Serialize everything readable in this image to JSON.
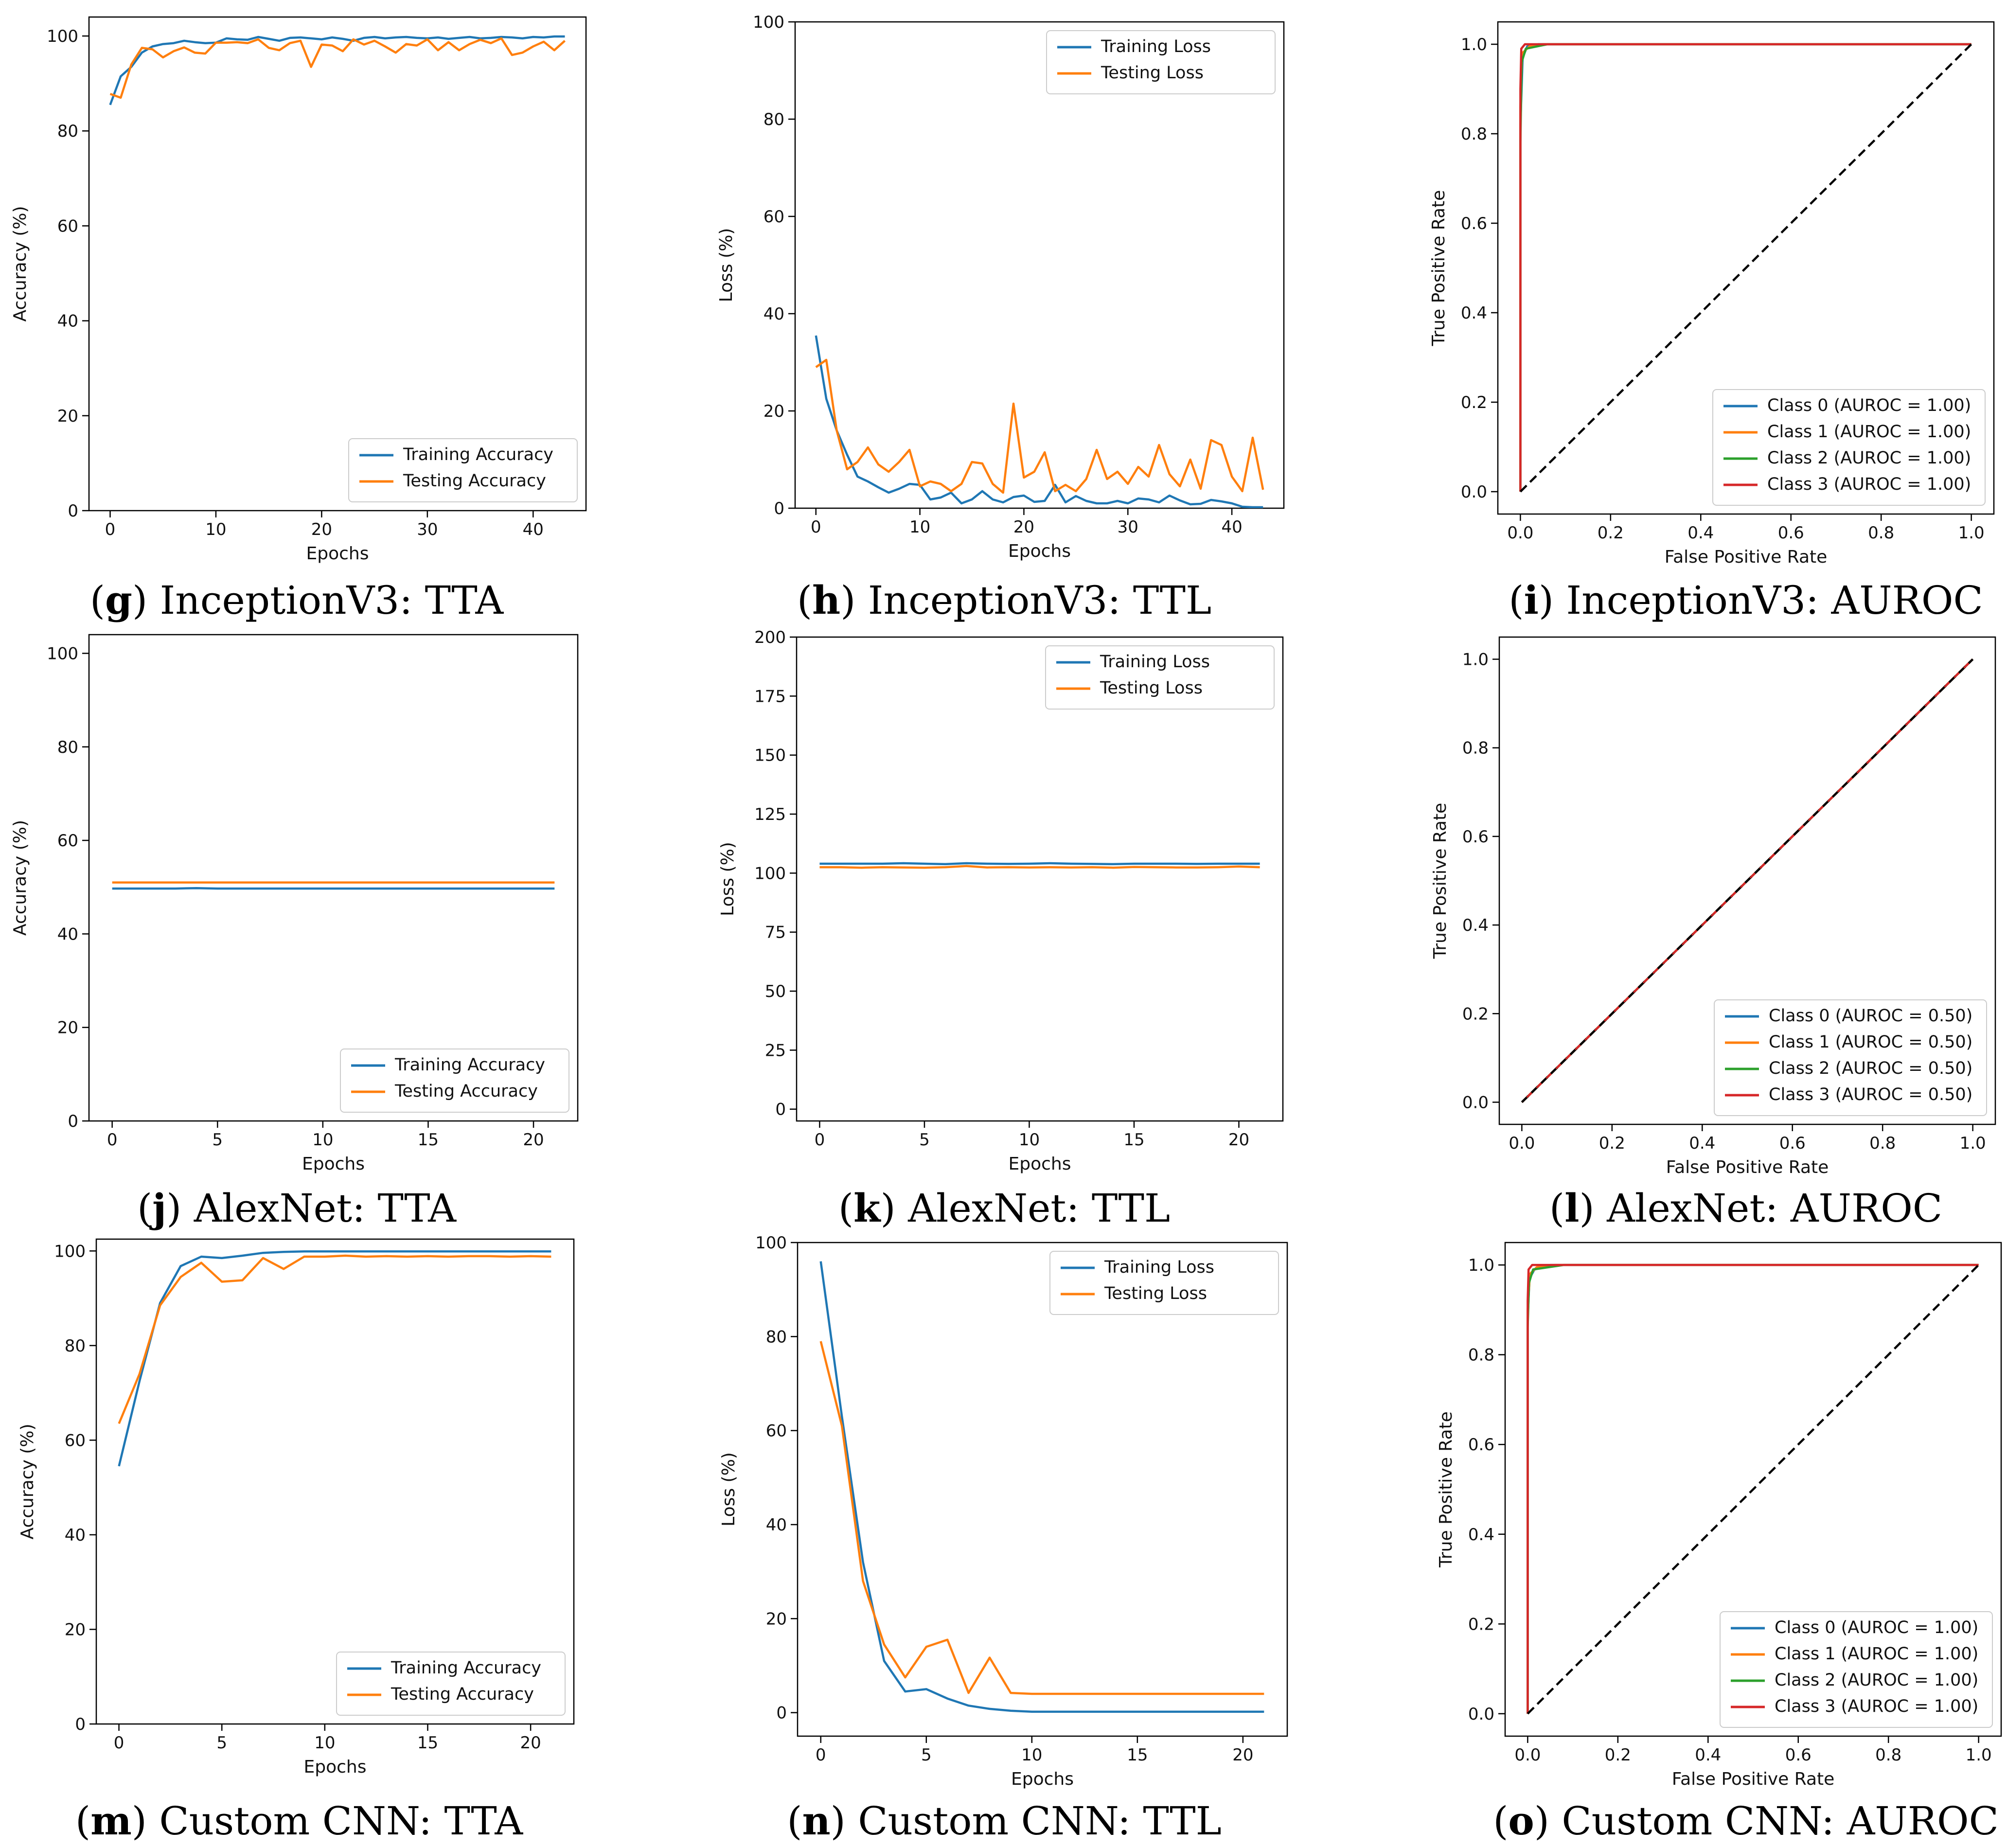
{
  "colors": {
    "blue": "#1f77b4",
    "orange": "#ff7f0e",
    "green": "#2ca02c",
    "red": "#d62728",
    "diag": "#000000",
    "axis": "#000000"
  },
  "chart_data": [
    {
      "type": "line",
      "panel": "g",
      "caption": {
        "letter": "g",
        "model": "InceptionV3",
        "metric": "TTA"
      },
      "xlabel": "Epochs",
      "ylabel": "Accuracy (%)",
      "xlim": [
        -2,
        45
      ],
      "ylim": [
        0,
        104
      ],
      "xticks": [
        0,
        10,
        20,
        30,
        40
      ],
      "yticks": [
        0,
        20,
        40,
        60,
        80,
        100
      ],
      "legend_position": "lower-right",
      "x": [
        0,
        1,
        2,
        3,
        4,
        5,
        6,
        7,
        8,
        9,
        10,
        11,
        12,
        13,
        14,
        15,
        16,
        17,
        18,
        19,
        20,
        21,
        22,
        23,
        24,
        25,
        26,
        27,
        28,
        29,
        30,
        31,
        32,
        33,
        34,
        35,
        36,
        37,
        38,
        39,
        40,
        41,
        42,
        43
      ],
      "series": [
        {
          "name": "Training Accuracy",
          "color": "blue",
          "values": [
            85.5,
            91.5,
            93.5,
            96.5,
            97.8,
            98.3,
            98.5,
            99.0,
            98.7,
            98.5,
            98.6,
            99.5,
            99.3,
            99.2,
            99.8,
            99.4,
            99.0,
            99.6,
            99.7,
            99.5,
            99.3,
            99.7,
            99.4,
            99.0,
            99.6,
            99.8,
            99.5,
            99.7,
            99.8,
            99.6,
            99.5,
            99.7,
            99.4,
            99.6,
            99.8,
            99.5,
            99.6,
            99.8,
            99.7,
            99.5,
            99.8,
            99.7,
            99.9,
            99.9
          ]
        },
        {
          "name": "Testing Accuracy",
          "color": "orange",
          "values": [
            87.8,
            87.0,
            94.0,
            97.5,
            97.2,
            95.5,
            96.8,
            97.6,
            96.5,
            96.3,
            98.6,
            98.6,
            98.7,
            98.5,
            99.3,
            97.5,
            97.0,
            98.5,
            99.0,
            93.5,
            98.2,
            98.0,
            96.8,
            99.3,
            98.2,
            99.0,
            97.8,
            96.5,
            98.3,
            98.0,
            99.3,
            97.0,
            98.7,
            97.0,
            98.3,
            99.2,
            98.5,
            99.5,
            96.0,
            96.5,
            97.8,
            98.8,
            97.0,
            99.0
          ]
        }
      ]
    },
    {
      "type": "line",
      "panel": "h",
      "caption": {
        "letter": "h",
        "model": "InceptionV3",
        "metric": "TTL"
      },
      "xlabel": "Epochs",
      "ylabel": "Loss (%)",
      "xlim": [
        -2,
        45
      ],
      "ylim": [
        0,
        100
      ],
      "xticks": [
        0,
        10,
        20,
        30,
        40
      ],
      "yticks": [
        0,
        20,
        40,
        60,
        80,
        100
      ],
      "legend_position": "top-right",
      "x": [
        0,
        1,
        2,
        3,
        4,
        5,
        6,
        7,
        8,
        9,
        10,
        11,
        12,
        13,
        14,
        15,
        16,
        17,
        18,
        19,
        20,
        21,
        22,
        23,
        24,
        25,
        26,
        27,
        28,
        29,
        30,
        31,
        32,
        33,
        34,
        35,
        36,
        37,
        38,
        39,
        40,
        41,
        42,
        43
      ],
      "series": [
        {
          "name": "Training Loss",
          "color": "blue",
          "values": [
            35.5,
            22.5,
            16.0,
            11.0,
            6.5,
            5.5,
            4.3,
            3.2,
            4.0,
            5.0,
            4.8,
            1.8,
            2.2,
            3.2,
            1.0,
            1.8,
            3.5,
            1.8,
            1.2,
            2.3,
            2.6,
            1.3,
            1.5,
            4.8,
            1.2,
            2.5,
            1.5,
            1.0,
            1.0,
            1.5,
            1.0,
            2.0,
            1.8,
            1.2,
            2.6,
            1.6,
            0.8,
            0.9,
            1.7,
            1.4,
            1.0,
            0.3,
            0.2,
            0.2
          ]
        },
        {
          "name": "Testing Loss",
          "color": "orange",
          "values": [
            29.0,
            30.5,
            16.0,
            8.0,
            9.5,
            12.5,
            9.0,
            7.5,
            9.5,
            12.0,
            4.5,
            5.5,
            5.0,
            3.5,
            5.0,
            9.5,
            9.2,
            5.0,
            3.2,
            21.5,
            6.3,
            7.5,
            11.5,
            3.5,
            4.8,
            3.5,
            6.0,
            12.0,
            6.0,
            7.5,
            5.0,
            8.5,
            6.5,
            13.0,
            7.0,
            4.5,
            10.0,
            4.0,
            14.0,
            13.0,
            6.5,
            3.5,
            14.5,
            3.8
          ]
        }
      ]
    },
    {
      "type": "line",
      "panel": "i",
      "caption": {
        "letter": "i",
        "model": "InceptionV3",
        "metric": "AUROC"
      },
      "xlabel": "False Positive Rate",
      "ylabel": "True Positive Rate",
      "xlim": [
        -0.05,
        1.05
      ],
      "ylim": [
        -0.05,
        1.05
      ],
      "xticks": [
        0.0,
        0.2,
        0.4,
        0.6,
        0.8,
        1.0
      ],
      "yticks": [
        0.0,
        0.2,
        0.4,
        0.6,
        0.8,
        1.0
      ],
      "tick_format": "1dp",
      "legend_position": "lower-right",
      "diagonal": true,
      "series": [
        {
          "name": "Class 0 (AUROC = 1.00)",
          "color": "blue",
          "x": [
            0,
            0,
            0.005,
            0.015,
            0.04,
            1
          ],
          "y": [
            0,
            0.82,
            0.97,
            0.995,
            1,
            1
          ]
        },
        {
          "name": "Class 1 (AUROC = 1.00)",
          "color": "orange",
          "x": [
            0,
            0,
            0.004,
            0.02,
            0.05,
            1
          ],
          "y": [
            0,
            0.86,
            0.98,
            0.995,
            1,
            1
          ]
        },
        {
          "name": "Class 2 (AUROC = 1.00)",
          "color": "green",
          "x": [
            0,
            0,
            0.003,
            0.012,
            0.06,
            1
          ],
          "y": [
            0,
            0.78,
            0.96,
            0.99,
            1,
            1
          ]
        },
        {
          "name": "Class 3 (AUROC = 1.00)",
          "color": "red",
          "x": [
            0,
            0,
            0.002,
            0.01,
            0.03,
            1
          ],
          "y": [
            0,
            0.9,
            0.99,
            1,
            1,
            1
          ]
        }
      ]
    },
    {
      "type": "line",
      "panel": "j",
      "caption": {
        "letter": "j",
        "model": "AlexNet",
        "metric": "TTA"
      },
      "xlabel": "Epochs",
      "ylabel": "Accuracy (%)",
      "xlim": [
        -1.1,
        22.1
      ],
      "ylim": [
        0,
        104
      ],
      "xticks": [
        0,
        5,
        10,
        15,
        20
      ],
      "yticks": [
        0,
        20,
        40,
        60,
        80,
        100
      ],
      "legend_position": "lower-right",
      "x": [
        0,
        1,
        2,
        3,
        4,
        5,
        6,
        7,
        8,
        9,
        10,
        11,
        12,
        13,
        14,
        15,
        16,
        17,
        18,
        19,
        20,
        21
      ],
      "series": [
        {
          "name": "Training Accuracy",
          "color": "blue",
          "values": [
            49.7,
            49.7,
            49.7,
            49.7,
            49.8,
            49.7,
            49.7,
            49.7,
            49.7,
            49.7,
            49.7,
            49.7,
            49.7,
            49.7,
            49.7,
            49.7,
            49.7,
            49.7,
            49.7,
            49.7,
            49.7,
            49.7
          ]
        },
        {
          "name": "Testing Accuracy",
          "color": "orange",
          "values": [
            51.0,
            51.0,
            51.0,
            51.0,
            51.0,
            51.0,
            51.0,
            51.0,
            51.0,
            51.0,
            51.0,
            51.0,
            51.0,
            51.0,
            51.0,
            51.0,
            51.0,
            51.0,
            51.0,
            51.0,
            51.0,
            51.0
          ]
        }
      ]
    },
    {
      "type": "line",
      "panel": "k",
      "caption": {
        "letter": "k",
        "model": "AlexNet",
        "metric": "TTL"
      },
      "xlabel": "Epochs",
      "ylabel": "Loss (%)",
      "xlim": [
        -1.1,
        22.1
      ],
      "ylim": [
        -5,
        200
      ],
      "xticks": [
        0,
        5,
        10,
        15,
        20
      ],
      "yticks": [
        0,
        25,
        50,
        75,
        100,
        125,
        150,
        175,
        200
      ],
      "legend_position": "top-right",
      "x": [
        0,
        1,
        2,
        3,
        4,
        5,
        6,
        7,
        8,
        9,
        10,
        11,
        12,
        13,
        14,
        15,
        16,
        17,
        18,
        19,
        20,
        21
      ],
      "series": [
        {
          "name": "Training Loss",
          "color": "blue",
          "values": [
            104.0,
            104.0,
            104.0,
            104.0,
            104.2,
            104.0,
            103.8,
            104.2,
            104.0,
            103.9,
            104.0,
            104.2,
            104.0,
            103.9,
            103.8,
            104.0,
            104.0,
            104.0,
            103.9,
            104.0,
            104.0,
            104.0
          ]
        },
        {
          "name": "Testing Loss",
          "color": "orange",
          "values": [
            102.5,
            102.5,
            102.3,
            102.5,
            102.4,
            102.3,
            102.5,
            103.0,
            102.4,
            102.5,
            102.4,
            102.5,
            102.4,
            102.5,
            102.3,
            102.6,
            102.5,
            102.4,
            102.4,
            102.5,
            102.8,
            102.5
          ]
        }
      ]
    },
    {
      "type": "line",
      "panel": "l",
      "caption": {
        "letter": "l",
        "model": "AlexNet",
        "metric": "AUROC"
      },
      "xlabel": "False Positive Rate",
      "ylabel": "True Positive Rate",
      "xlim": [
        -0.05,
        1.05
      ],
      "ylim": [
        -0.05,
        1.05
      ],
      "xticks": [
        0.0,
        0.2,
        0.4,
        0.6,
        0.8,
        1.0
      ],
      "yticks": [
        0.0,
        0.2,
        0.4,
        0.6,
        0.8,
        1.0
      ],
      "tick_format": "1dp",
      "legend_position": "lower-right",
      "diagonal": true,
      "series": [
        {
          "name": "Class 0 (AUROC = 0.50)",
          "color": "blue",
          "x": [
            0,
            1
          ],
          "y": [
            0,
            1
          ]
        },
        {
          "name": "Class 1 (AUROC = 0.50)",
          "color": "orange",
          "x": [
            0,
            1
          ],
          "y": [
            0,
            1
          ]
        },
        {
          "name": "Class 2 (AUROC = 0.50)",
          "color": "green",
          "x": [
            0,
            1
          ],
          "y": [
            0,
            1
          ]
        },
        {
          "name": "Class 3 (AUROC = 0.50)",
          "color": "red",
          "x": [
            0,
            1
          ],
          "y": [
            0,
            1
          ]
        }
      ]
    },
    {
      "type": "line",
      "panel": "m",
      "caption": {
        "letter": "m",
        "model": "Custom CNN",
        "metric": "TTA"
      },
      "xlabel": "Epochs",
      "ylabel": "Accuracy (%)",
      "xlim": [
        -1.1,
        22.1
      ],
      "ylim": [
        0,
        102.5
      ],
      "xticks": [
        0,
        5,
        10,
        15,
        20
      ],
      "yticks": [
        0,
        20,
        40,
        60,
        80,
        100
      ],
      "legend_position": "lower-right",
      "x": [
        0,
        1,
        2,
        3,
        4,
        5,
        6,
        7,
        8,
        9,
        10,
        11,
        12,
        13,
        14,
        15,
        16,
        17,
        18,
        19,
        20,
        21
      ],
      "series": [
        {
          "name": "Training Accuracy",
          "color": "blue",
          "values": [
            54.5,
            72.5,
            89.0,
            96.8,
            98.8,
            98.5,
            99.0,
            99.6,
            99.8,
            99.9,
            99.9,
            99.9,
            99.9,
            99.9,
            99.9,
            99.9,
            99.9,
            99.9,
            99.9,
            99.9,
            99.9,
            99.9
          ]
        },
        {
          "name": "Testing Accuracy",
          "color": "orange",
          "values": [
            63.5,
            74.0,
            88.5,
            94.5,
            97.5,
            93.5,
            93.8,
            98.5,
            96.2,
            98.8,
            98.8,
            99.0,
            98.8,
            98.9,
            98.8,
            98.9,
            98.8,
            98.9,
            98.9,
            98.8,
            98.9,
            98.8
          ]
        }
      ]
    },
    {
      "type": "line",
      "panel": "n",
      "caption": {
        "letter": "n",
        "model": "Custom CNN",
        "metric": "TTL"
      },
      "xlabel": "Epochs",
      "ylabel": "Loss (%)",
      "xlim": [
        -1.1,
        22.1
      ],
      "ylim": [
        -5,
        100
      ],
      "xticks": [
        0,
        5,
        10,
        15,
        20
      ],
      "yticks": [
        0,
        20,
        40,
        60,
        80,
        100
      ],
      "legend_position": "top-right",
      "x": [
        0,
        1,
        2,
        3,
        4,
        5,
        6,
        7,
        8,
        9,
        10,
        11,
        12,
        13,
        14,
        15,
        16,
        17,
        18,
        19,
        20,
        21
      ],
      "series": [
        {
          "name": "Training Loss",
          "color": "blue",
          "values": [
            96.0,
            63.0,
            32.0,
            11.0,
            4.5,
            5.0,
            3.0,
            1.5,
            0.8,
            0.4,
            0.2,
            0.2,
            0.2,
            0.2,
            0.2,
            0.2,
            0.2,
            0.2,
            0.2,
            0.2,
            0.2,
            0.2
          ]
        },
        {
          "name": "Testing Loss",
          "color": "orange",
          "values": [
            79.0,
            61.0,
            28.0,
            14.5,
            7.5,
            14.0,
            15.5,
            4.2,
            11.7,
            4.2,
            4.0,
            4.0,
            4.0,
            4.0,
            4.0,
            4.0,
            4.0,
            4.0,
            4.0,
            4.0,
            4.0,
            4.0
          ]
        }
      ]
    },
    {
      "type": "line",
      "panel": "o",
      "caption": {
        "letter": "o",
        "model": "Custom CNN",
        "metric": "AUROC"
      },
      "xlabel": "False Positive Rate",
      "ylabel": "True Positive Rate",
      "xlim": [
        -0.05,
        1.05
      ],
      "ylim": [
        -0.05,
        1.05
      ],
      "xticks": [
        0.0,
        0.2,
        0.4,
        0.6,
        0.8,
        1.0
      ],
      "yticks": [
        0.0,
        0.2,
        0.4,
        0.6,
        0.8,
        1.0
      ],
      "tick_format": "1dp",
      "legend_position": "lower-right",
      "diagonal": true,
      "series": [
        {
          "name": "Class 0 (AUROC = 1.00)",
          "color": "blue",
          "x": [
            0,
            0,
            0.004,
            0.015,
            0.05,
            1
          ],
          "y": [
            0,
            0.88,
            0.97,
            0.99,
            1,
            1
          ]
        },
        {
          "name": "Class 1 (AUROC = 1.00)",
          "color": "orange",
          "x": [
            0,
            0,
            0.005,
            0.02,
            0.06,
            1
          ],
          "y": [
            0,
            0.9,
            0.98,
            0.995,
            1,
            1
          ]
        },
        {
          "name": "Class 2 (AUROC = 1.00)",
          "color": "green",
          "x": [
            0,
            0,
            0.003,
            0.012,
            0.08,
            1
          ],
          "y": [
            0,
            0.86,
            0.96,
            0.99,
            1,
            1
          ]
        },
        {
          "name": "Class 3 (AUROC = 1.00)",
          "color": "red",
          "x": [
            0,
            0,
            0.002,
            0.01,
            0.03,
            1
          ],
          "y": [
            0,
            0.92,
            0.99,
            1,
            1,
            1
          ]
        }
      ]
    }
  ]
}
